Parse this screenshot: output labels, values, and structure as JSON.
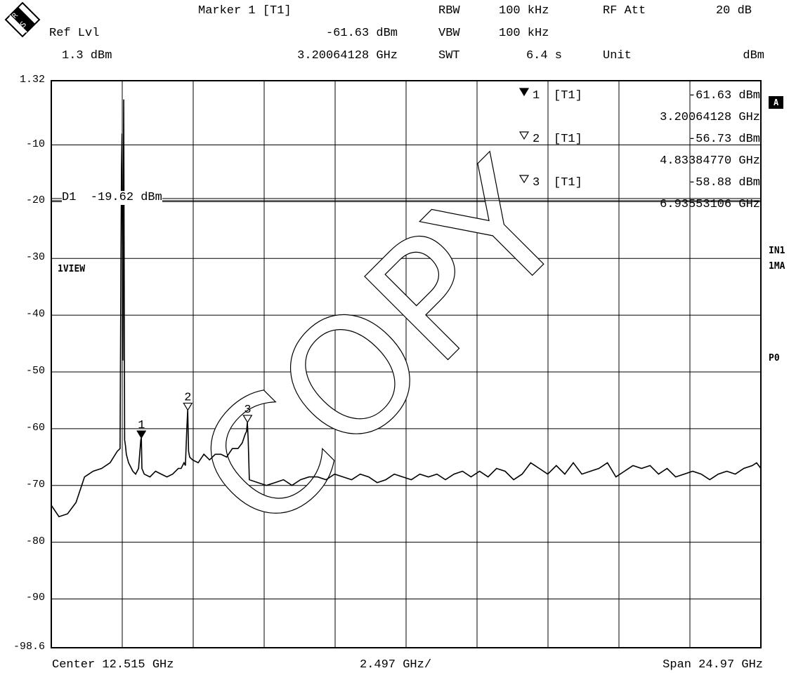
{
  "header": {
    "marker_title": "Marker 1 [T1]",
    "ref_lvl_label": "Ref Lvl",
    "ref_lvl_value": "1.3 dBm",
    "marker_level": "-61.63 dBm",
    "marker_freq": "3.20064128 GHz",
    "rbw_label": "RBW",
    "rbw_value": "100 kHz",
    "vbw_label": "VBW",
    "vbw_value": "100 kHz",
    "swt_label": "SWT",
    "swt_value": "6.4 s",
    "rfatt_label": "RF Att",
    "rfatt_value": "20 dB",
    "unit_label": "Unit",
    "unit_value": "dBm"
  },
  "markers_table": [
    {
      "symbol": "▼",
      "num": "1",
      "trace": "[T1]",
      "level": "-61.63 dBm",
      "freq": "3.20064128 GHz"
    },
    {
      "symbol": "▽",
      "num": "2",
      "trace": "[T1]",
      "level": "-56.73 dBm",
      "freq": "4.83384770 GHz"
    },
    {
      "symbol": "▽",
      "num": "3",
      "trace": "[T1]",
      "level": "-58.88 dBm",
      "freq": "6.93553106 GHz"
    }
  ],
  "side_labels": {
    "a": "A",
    "in1": "IN1",
    "ma1": "1MA",
    "p0": "P0"
  },
  "trace_label": "1VIEW",
  "display_line_label": "D1  -19.62 dBm",
  "watermark": "COPY",
  "footer": {
    "center": "Center 12.515 GHz",
    "div": "2.497 GHz/",
    "span": "Span 24.97 GHz"
  },
  "chart_data": {
    "type": "line",
    "title": "",
    "xlabel": "",
    "ylabel": "",
    "x_unit": "GHz",
    "y_unit": "dBm",
    "xlim": [
      0.03,
      25.0
    ],
    "ylim": [
      -98.6,
      1.32
    ],
    "y_ticks": [
      "1.32",
      "-10",
      "-20",
      "-30",
      "-40",
      "-50",
      "-60",
      "-70",
      "-80",
      "-90",
      "-98.6"
    ],
    "grid": true,
    "display_line_dbm": -19.62,
    "markers": [
      {
        "label": "1",
        "x": 3.2006,
        "y": -61.63,
        "filled": true
      },
      {
        "label": "2",
        "x": 4.8338,
        "y": -56.73,
        "filled": false
      },
      {
        "label": "3",
        "x": 6.9355,
        "y": -58.88,
        "filled": false
      }
    ],
    "series": [
      {
        "x": [
          0.03,
          0.3,
          0.6,
          0.9,
          1.2,
          1.5,
          1.8,
          2.1,
          2.35,
          2.45,
          2.48,
          2.5,
          2.52,
          2.55,
          2.58,
          2.61,
          2.64,
          2.67,
          2.75,
          2.9,
          3.0,
          3.1,
          3.18,
          3.2,
          3.22,
          3.3,
          3.5,
          3.7,
          3.9,
          4.1,
          4.3,
          4.5,
          4.6,
          4.7,
          4.75,
          4.8,
          4.83,
          4.86,
          4.9,
          5.0,
          5.2,
          5.4,
          5.6,
          5.8,
          6.0,
          6.2,
          6.4,
          6.6,
          6.75,
          6.85,
          6.9,
          6.93,
          6.96,
          7.0,
          7.3,
          7.6,
          7.9,
          8.2,
          8.5,
          8.8,
          9.1,
          9.4,
          9.7,
          10.0,
          10.3,
          10.6,
          10.9,
          11.2,
          11.5,
          11.8,
          12.1,
          12.4,
          12.7,
          13.0,
          13.3,
          13.6,
          13.9,
          14.2,
          14.5,
          14.8,
          15.1,
          15.4,
          15.7,
          16.0,
          16.3,
          16.6,
          16.9,
          17.2,
          17.5,
          17.8,
          18.1,
          18.4,
          18.7,
          19.0,
          19.3,
          19.6,
          19.9,
          20.2,
          20.5,
          20.8,
          21.1,
          21.4,
          21.7,
          22.0,
          22.3,
          22.6,
          22.9,
          23.2,
          23.5,
          23.8,
          24.1,
          24.4,
          24.7,
          24.85,
          25.0
        ],
        "y": [
          -73.5,
          -75.5,
          -75,
          -73,
          -68.5,
          -67.5,
          -67,
          -66,
          -64,
          -63.5,
          -32,
          -14,
          -8,
          -48,
          -2,
          -62,
          -63,
          -64.5,
          -66,
          -67.5,
          -68,
          -67,
          -62,
          -61.6,
          -67,
          -68,
          -68.5,
          -67.5,
          -68,
          -68.5,
          -68,
          -67,
          -67,
          -66,
          -66.5,
          -60,
          -56.7,
          -64,
          -65,
          -65.5,
          -66,
          -64.5,
          -65.5,
          -64.5,
          -64.5,
          -65,
          -63.5,
          -63.5,
          -62.5,
          -61,
          -60.5,
          -58.9,
          -62,
          -69,
          -69.5,
          -70,
          -69.5,
          -69,
          -70,
          -69,
          -68.5,
          -68.5,
          -69,
          -68,
          -68.5,
          -69,
          -68,
          -68.5,
          -69.5,
          -69,
          -68,
          -68.5,
          -69,
          -68,
          -68.5,
          -68,
          -69,
          -68,
          -67.5,
          -68.5,
          -67.5,
          -68.5,
          -67,
          -67.5,
          -69,
          -68,
          -66,
          -67,
          -68,
          -66.5,
          -68,
          -66,
          -68,
          -67.5,
          -67,
          -66,
          -68.5,
          -67.5,
          -66.5,
          -67,
          -66.5,
          -68,
          -67,
          -68.5,
          -68,
          -67.5,
          -68,
          -69,
          -68,
          -67.5,
          -68,
          -67,
          -66.5,
          -66,
          -67
        ]
      }
    ]
  }
}
